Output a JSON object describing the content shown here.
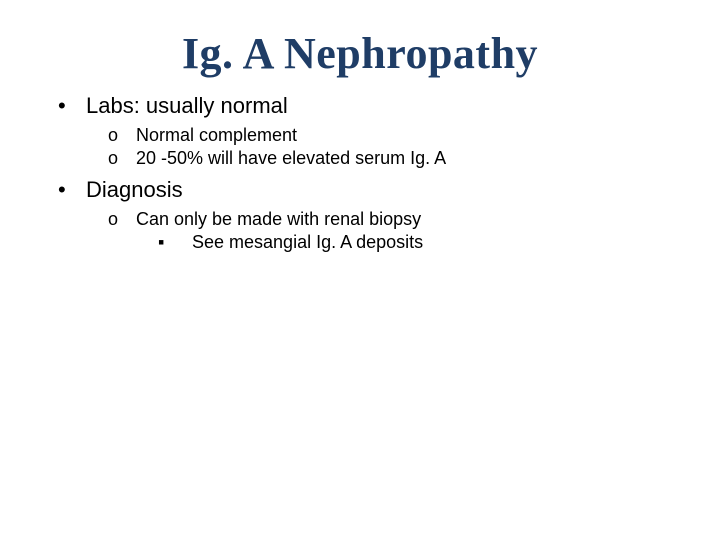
{
  "slide": {
    "title": "Ig. A Nephropathy",
    "title_color": "#1f3d66",
    "title_fontsize": 44,
    "body_fontsize_lvl1": 22,
    "body_fontsize_lvl2": 18,
    "body_fontsize_lvl3": 18,
    "background_color": "#ffffff",
    "text_color": "#000000",
    "bullets_lvl1_marker": "•",
    "bullets_lvl2_marker": "o",
    "bullets_lvl3_marker": "▪",
    "items": [
      {
        "level": 1,
        "text": "Labs: usually normal"
      },
      {
        "level": 2,
        "text": "Normal complement"
      },
      {
        "level": 2,
        "text": "20 -50% will have elevated serum Ig. A"
      },
      {
        "level": 1,
        "text": "Diagnosis"
      },
      {
        "level": 2,
        "text": "Can only be made with renal biopsy"
      },
      {
        "level": 3,
        "text": "See mesangial Ig. A deposits"
      }
    ]
  }
}
